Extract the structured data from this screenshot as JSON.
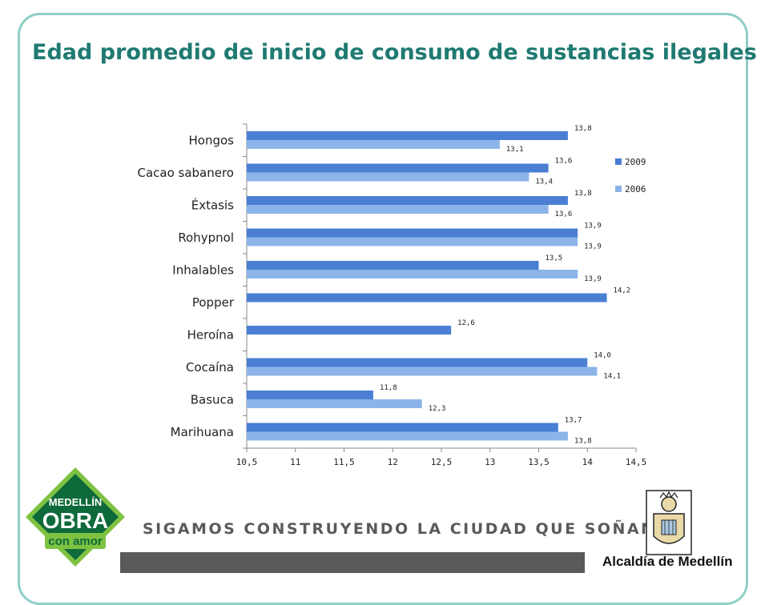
{
  "slide": {
    "title": "Edad promedio de inicio de consumo de sustancias ilegales",
    "tagline": "SIGAMOS CONSTRUYENDO LA CIUDAD QUE SOÑAMOS",
    "org_name": "Alcaldía de Medellín",
    "logo": {
      "line1": "MEDELLÍN",
      "line2": "OBRA",
      "line3": "con amor"
    }
  },
  "colors": {
    "accent": "#1f7a72",
    "frame": "#8ecfc7",
    "series_2009": "#4a7fd4",
    "series_2006": "#8cb4e8",
    "logo_dark": "#0e6a3a",
    "logo_light": "#7ec242"
  },
  "chart_data": {
    "type": "bar",
    "orientation": "horizontal",
    "categories": [
      "Hongos",
      "Cacao sabanero",
      "Éxtasis",
      "Rohypnol",
      "Inhalables",
      "Popper",
      "Heroína",
      "Cocaína",
      "Basuca",
      "Marihuana"
    ],
    "series": [
      {
        "name": "2009",
        "values": [
          13.8,
          13.6,
          13.8,
          13.9,
          13.5,
          14.2,
          12.6,
          14.0,
          11.8,
          13.7
        ],
        "labels": [
          "13,8",
          "13,6",
          "13,8",
          "13,9",
          "13,5",
          "14,2",
          "12,6",
          "14,0",
          "11,8",
          "13,7"
        ]
      },
      {
        "name": "2006",
        "values": [
          13.1,
          13.4,
          13.6,
          13.9,
          13.9,
          null,
          null,
          14.1,
          12.3,
          13.8
        ],
        "labels": [
          "13,1",
          "13,4",
          "13,6",
          "13,9",
          "13,9",
          "",
          "",
          "14,1",
          "12,3",
          "13,8"
        ]
      }
    ],
    "xlim": [
      10.5,
      14.5
    ],
    "x_ticks": [
      10.5,
      11,
      11.5,
      12,
      12.5,
      13,
      13.5,
      14,
      14.5
    ],
    "x_tick_labels": [
      "10,5",
      "11",
      "11,5",
      "12",
      "12,5",
      "13",
      "13,5",
      "14",
      "14,5"
    ],
    "grid": false,
    "legend_position": "right"
  }
}
